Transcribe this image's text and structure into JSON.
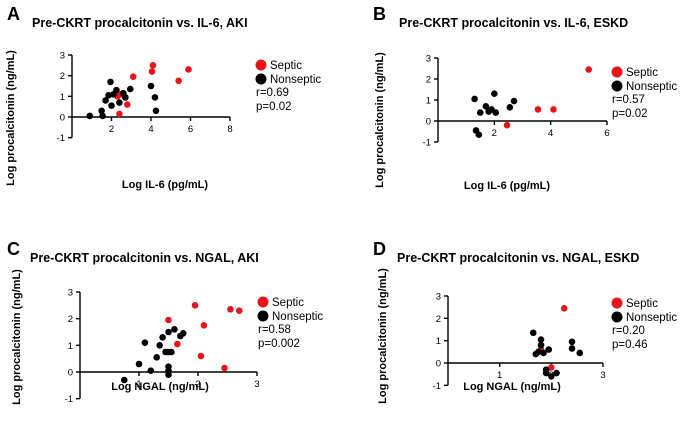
{
  "chart_data": [
    {
      "type": "scatter",
      "panel": "A",
      "title": "Pre-CKRT procalcitonin vs. IL-6, AKI",
      "xlabel": "Log IL-6 (pg/mL)",
      "ylabel": "Log procalcitonin (ng/mL)",
      "xlim": [
        0,
        8
      ],
      "ylim": [
        -1,
        3
      ],
      "xticks": [
        2,
        4,
        6,
        8
      ],
      "yticks": [
        -1,
        0,
        1,
        2,
        3
      ],
      "legend": [
        "Septic",
        "Nonseptic"
      ],
      "stats": [
        "r=0.69",
        "p=0.02"
      ],
      "series": [
        {
          "name": "Septic",
          "color": "#e8141b",
          "points": [
            [
              2.3,
              1.0
            ],
            [
              2.5,
              1.1
            ],
            [
              2.7,
              0.95
            ],
            [
              2.8,
              0.6
            ],
            [
              3.1,
              1.95
            ],
            [
              4.05,
              2.2
            ],
            [
              4.1,
              2.5
            ],
            [
              5.4,
              1.75
            ],
            [
              5.9,
              2.3
            ],
            [
              2.4,
              0.15
            ]
          ]
        },
        {
          "name": "Nonseptic",
          "color": "#000000",
          "points": [
            [
              0.9,
              0.05
            ],
            [
              1.5,
              0.3
            ],
            [
              1.55,
              0.05
            ],
            [
              1.7,
              0.8
            ],
            [
              1.85,
              1.05
            ],
            [
              1.95,
              1.7
            ],
            [
              2.0,
              0.55
            ],
            [
              2.1,
              1.1
            ],
            [
              2.25,
              1.3
            ],
            [
              2.4,
              0.7
            ],
            [
              2.6,
              1.15
            ],
            [
              2.7,
              0.95
            ],
            [
              2.95,
              1.35
            ],
            [
              4.0,
              1.5
            ],
            [
              4.2,
              0.95
            ],
            [
              4.25,
              0.3
            ]
          ]
        }
      ]
    },
    {
      "type": "scatter",
      "panel": "B",
      "title": "Pre-CKRT procalcitonin vs. IL-6, ESKD",
      "xlabel": "Log IL-6 (pg/mL)",
      "ylabel": "Log procalcitonin  (ng/mL)",
      "xlim": [
        0,
        6
      ],
      "ylim": [
        -1,
        3
      ],
      "xticks": [
        2,
        4,
        6
      ],
      "yticks": [
        -1,
        0,
        1,
        2,
        3
      ],
      "legend": [
        "Septic",
        "Nonseptic"
      ],
      "stats": [
        "r=0.57",
        "p=0.02"
      ],
      "series": [
        {
          "name": "Septic",
          "color": "#e8141b",
          "points": [
            [
              2.45,
              -0.2
            ],
            [
              3.55,
              0.55
            ],
            [
              4.1,
              0.55
            ],
            [
              5.35,
              2.45
            ]
          ]
        },
        {
          "name": "Nonseptic",
          "color": "#000000",
          "points": [
            [
              1.3,
              1.05
            ],
            [
              1.35,
              -0.45
            ],
            [
              1.45,
              -0.65
            ],
            [
              1.5,
              0.4
            ],
            [
              1.7,
              0.7
            ],
            [
              1.8,
              0.45
            ],
            [
              1.9,
              0.55
            ],
            [
              2.0,
              1.3
            ],
            [
              2.05,
              0.4
            ],
            [
              2.55,
              0.65
            ],
            [
              2.7,
              0.95
            ]
          ]
        }
      ]
    },
    {
      "type": "scatter",
      "panel": "C",
      "title": "Pre-CKRT procalcitonin vs. NGAL, AKI",
      "xlabel": "Log NGAL (ng/mL)",
      "ylabel": "Log procalcitonin (ng/mL)",
      "xlim": [
        0,
        3
      ],
      "ylim": [
        -1,
        3
      ],
      "xticks": [
        1,
        2,
        3
      ],
      "yticks": [
        -1,
        0,
        1,
        2,
        3
      ],
      "legend": [
        "Septic",
        "Nonseptic"
      ],
      "stats": [
        "r=0.58",
        "p=0.002"
      ],
      "series": [
        {
          "name": "Septic",
          "color": "#e8141b",
          "points": [
            [
              1.5,
              1.95
            ],
            [
              1.65,
              1.05
            ],
            [
              1.95,
              2.5
            ],
            [
              2.05,
              0.6
            ],
            [
              2.1,
              1.75
            ],
            [
              2.45,
              0.15
            ],
            [
              2.55,
              2.35
            ],
            [
              2.7,
              2.3
            ]
          ]
        },
        {
          "name": "Nonseptic",
          "color": "#000000",
          "points": [
            [
              0.75,
              -0.3
            ],
            [
              1.0,
              0.3
            ],
            [
              1.1,
              1.1
            ],
            [
              1.2,
              0.05
            ],
            [
              1.3,
              0.55
            ],
            [
              1.35,
              1.0
            ],
            [
              1.4,
              1.3
            ],
            [
              1.45,
              0.75
            ],
            [
              1.5,
              0.75
            ],
            [
              1.5,
              0.05
            ],
            [
              1.5,
              -0.1
            ],
            [
              1.5,
              1.5
            ],
            [
              1.5,
              0.2
            ],
            [
              1.55,
              0.75
            ],
            [
              1.6,
              1.6
            ],
            [
              1.7,
              1.35
            ],
            [
              1.75,
              1.45
            ]
          ]
        }
      ]
    },
    {
      "type": "scatter",
      "panel": "D",
      "title": "Pre-CKRT procalcitonin vs. NGAL, ESKD",
      "xlabel": "Log NGAL (ng/mL)",
      "ylabel": "Log procalcitonin (ng/mL)",
      "xlim": [
        0,
        3
      ],
      "ylim": [
        -1,
        3
      ],
      "xticks": [
        1,
        2,
        3
      ],
      "yticks": [
        -1,
        0,
        1,
        2,
        3
      ],
      "legend": [
        "Septic",
        "Nonseptic"
      ],
      "stats": [
        "r=0.20",
        "p=0.46"
      ],
      "series": [
        {
          "name": "Septic",
          "color": "#e8141b",
          "points": [
            [
              1.8,
              0.6
            ],
            [
              2.0,
              -0.2
            ],
            [
              2.25,
              2.45
            ]
          ]
        },
        {
          "name": "Nonseptic",
          "color": "#000000",
          "points": [
            [
              1.65,
              1.35
            ],
            [
              1.7,
              0.4
            ],
            [
              1.75,
              0.5
            ],
            [
              1.8,
              0.8
            ],
            [
              1.8,
              1.05
            ],
            [
              1.85,
              0.45
            ],
            [
              1.9,
              -0.3
            ],
            [
              1.9,
              -0.45
            ],
            [
              1.95,
              0.6
            ],
            [
              2.0,
              -0.6
            ],
            [
              2.1,
              -0.45
            ],
            [
              2.4,
              0.95
            ],
            [
              2.4,
              0.65
            ],
            [
              2.55,
              0.45
            ]
          ]
        }
      ]
    }
  ]
}
